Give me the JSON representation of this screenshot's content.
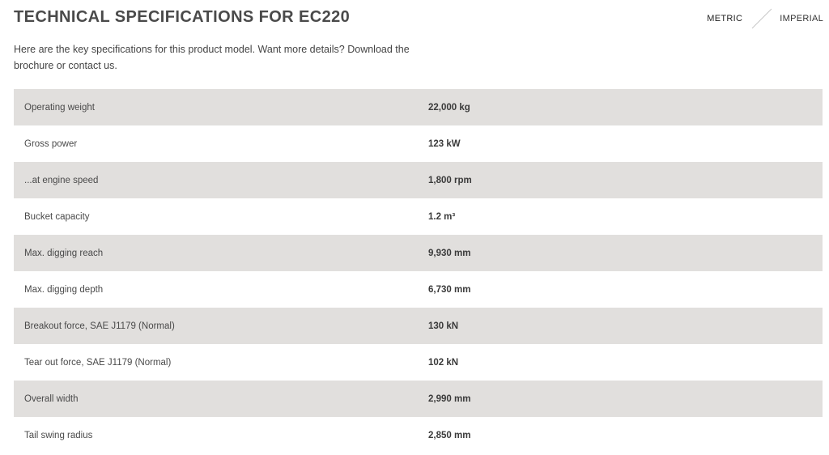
{
  "header": {
    "title": "TECHNICAL SPECIFICATIONS FOR EC220",
    "unit_toggle": {
      "metric_label": "METRIC",
      "imperial_label": "IMPERIAL",
      "selected": "METRIC"
    }
  },
  "intro": {
    "text": "Here are the key specifications for this product model. Want more details? Download the brochure or contact us."
  },
  "specs": [
    {
      "label": "Operating weight",
      "value": "22,000 kg"
    },
    {
      "label": "Gross power",
      "value": "123 kW"
    },
    {
      "label": "...at engine speed",
      "value": "1,800 rpm"
    },
    {
      "label": "Bucket capacity",
      "value": "1.2 m³"
    },
    {
      "label": "Max. digging reach",
      "value": "9,930 mm"
    },
    {
      "label": "Max. digging depth",
      "value": "6,730 mm"
    },
    {
      "label": "Breakout force, SAE J1179 (Normal)",
      "value": "130 kN"
    },
    {
      "label": "Tear out force, SAE J1179 (Normal)",
      "value": "102 kN"
    },
    {
      "label": "Overall width",
      "value": "2,990 mm"
    },
    {
      "label": "Tail swing radius",
      "value": "2,850 mm"
    }
  ],
  "colors": {
    "row_shaded": "#e1dfdd",
    "row_plain": "#ffffff",
    "title": "#4a4a4a"
  }
}
